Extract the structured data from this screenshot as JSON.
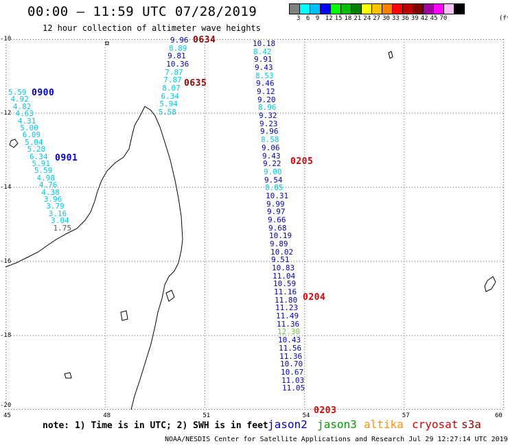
{
  "title": "00:00 – 11:59 UTC 07/28/2019",
  "subtitle": "12 hour collection of altimeter wave heights",
  "colorbar": {
    "colors": [
      "#808080",
      "#00ffff",
      "#00c0ff",
      "#0000ff",
      "#00ff00",
      "#00c000",
      "#008000",
      "#ffff00",
      "#ffc000",
      "#ff8000",
      "#ff0000",
      "#c00000",
      "#800000",
      "#a000a0",
      "#ff00ff",
      "#ffc0ff",
      "#000000"
    ],
    "labels": [
      "3",
      "6",
      "9",
      "12",
      "15",
      "18",
      "21",
      "24",
      "27",
      "30",
      "33",
      "36",
      "39",
      "42",
      "45",
      "70"
    ],
    "unit": "(ft)"
  },
  "map": {
    "lon_range": [
      45,
      60
    ],
    "lat_range": [
      -20,
      -10
    ],
    "grid": true,
    "lon_ticks": [
      "45",
      "48",
      "51",
      "54",
      "57",
      "60"
    ],
    "lat_ticks": [
      "-10",
      "-12",
      "-14",
      "-16",
      "-18",
      "-20"
    ]
  },
  "colors": {
    "jason2": "#0000cc",
    "jason3": "#00a000",
    "altika": "#ff9000",
    "cryosat": "#dd0000",
    "s3a": "#990000",
    "cyan": "#00c8e8",
    "coast": "#000000",
    "grid": "#666666"
  },
  "tracks": [
    {
      "id": "track_a",
      "values": [
        {
          "v": "5.59",
          "c": "cyan"
        },
        {
          "v": "4.92",
          "c": "cyan"
        },
        {
          "v": "4.82",
          "c": "cyan"
        },
        {
          "v": "4.63",
          "c": "cyan"
        },
        {
          "v": "4.31",
          "c": "cyan"
        },
        {
          "v": "5.00",
          "c": "cyan"
        },
        {
          "v": "6.09",
          "c": "cyan"
        },
        {
          "v": "5.04",
          "c": "cyan"
        },
        {
          "v": "5.28",
          "c": "cyan"
        },
        {
          "v": "6.34",
          "c": "cyan"
        },
        {
          "v": "5.91",
          "c": "cyan"
        },
        {
          "v": "5.59",
          "c": "cyan"
        },
        {
          "v": "4.98",
          "c": "cyan"
        },
        {
          "v": "4.76",
          "c": "cyan"
        },
        {
          "v": "4.38",
          "c": "cyan"
        },
        {
          "v": "3.96",
          "c": "cyan"
        },
        {
          "v": "3.79",
          "c": "cyan"
        },
        {
          "v": "3.16",
          "c": "cyan"
        },
        {
          "v": "3.04",
          "c": "cyan"
        },
        {
          "v": "1.75",
          "c": "gray"
        }
      ]
    },
    {
      "id": "track_b",
      "values": [
        {
          "v": "9.96",
          "c": "jason2"
        },
        {
          "v": "8.89",
          "c": "cyan"
        },
        {
          "v": "9.81",
          "c": "jason2"
        },
        {
          "v": "10.36",
          "c": "jason2"
        },
        {
          "v": "7.87",
          "c": "cyan"
        },
        {
          "v": "7.87",
          "c": "cyan"
        },
        {
          "v": "8.07",
          "c": "cyan"
        },
        {
          "v": "6.34",
          "c": "cyan"
        },
        {
          "v": "5.94",
          "c": "cyan"
        },
        {
          "v": "5.58",
          "c": "cyan"
        }
      ]
    },
    {
      "id": "track_c",
      "values": [
        {
          "v": "10.18",
          "c": "jason2"
        },
        {
          "v": "8.42",
          "c": "cyan"
        },
        {
          "v": "9.91",
          "c": "jason2"
        },
        {
          "v": "9.43",
          "c": "jason2"
        },
        {
          "v": "8.53",
          "c": "cyan"
        },
        {
          "v": "9.46",
          "c": "jason2"
        },
        {
          "v": "9.12",
          "c": "jason2"
        },
        {
          "v": "9.20",
          "c": "jason2"
        },
        {
          "v": "8.96",
          "c": "cyan"
        },
        {
          "v": "9.32",
          "c": "jason2"
        },
        {
          "v": "9.23",
          "c": "jason2"
        },
        {
          "v": "9.96",
          "c": "jason2"
        },
        {
          "v": "8.58",
          "c": "cyan"
        },
        {
          "v": "9.06",
          "c": "jason2"
        },
        {
          "v": "9.43",
          "c": "jason2"
        },
        {
          "v": "9.22",
          "c": "jason2"
        },
        {
          "v": "9.00",
          "c": "cyan"
        },
        {
          "v": "9.54",
          "c": "jason2"
        },
        {
          "v": "8.85",
          "c": "cyan"
        },
        {
          "v": "10.31",
          "c": "jason2"
        },
        {
          "v": "9.99",
          "c": "jason2"
        },
        {
          "v": "9.97",
          "c": "jason2"
        },
        {
          "v": "9.66",
          "c": "jason2"
        },
        {
          "v": "9.68",
          "c": "jason2"
        },
        {
          "v": "10.19",
          "c": "jason2"
        },
        {
          "v": "9.89",
          "c": "jason2"
        },
        {
          "v": "10.02",
          "c": "jason2"
        },
        {
          "v": "9.51",
          "c": "jason2"
        },
        {
          "v": "10.83",
          "c": "jason2"
        },
        {
          "v": "11.04",
          "c": "jason2"
        },
        {
          "v": "10.59",
          "c": "jason2"
        },
        {
          "v": "11.16",
          "c": "jason2"
        },
        {
          "v": "11.80",
          "c": "jason2"
        },
        {
          "v": "11.23",
          "c": "jason2"
        },
        {
          "v": "11.49",
          "c": "jason2"
        },
        {
          "v": "11.36",
          "c": "jason2"
        },
        {
          "v": "12.30",
          "c": "green"
        },
        {
          "v": "10.43",
          "c": "jason2"
        },
        {
          "v": "11.56",
          "c": "jason2"
        },
        {
          "v": "11.36",
          "c": "jason2"
        },
        {
          "v": "10.70",
          "c": "jason2"
        },
        {
          "v": "10.67",
          "c": "jason2"
        },
        {
          "v": "11.03",
          "c": "jason2"
        },
        {
          "v": "11.05",
          "c": "jason2"
        }
      ]
    }
  ],
  "timestamps": [
    {
      "t": "0634",
      "c": "s3a"
    },
    {
      "t": "0635",
      "c": "s3a"
    },
    {
      "t": "0900",
      "c": "jason2"
    },
    {
      "t": "0901",
      "c": "jason2"
    },
    {
      "t": "0205",
      "c": "cryosat"
    },
    {
      "t": "0204",
      "c": "cryosat"
    },
    {
      "t": "0203",
      "c": "cryosat"
    }
  ],
  "note": "note: 1) Time is in UTC; 2) SWH is in feet",
  "legend": [
    {
      "name": "jason2",
      "c": "jason2"
    },
    {
      "name": "jason3",
      "c": "jason3"
    },
    {
      "name": "altika",
      "c": "altika"
    },
    {
      "name": "cryosat",
      "c": "cryosat"
    },
    {
      "name": "s3a",
      "c": "s3a"
    }
  ],
  "credit": "NOAA/NESDIS Center for Satellite Applications and Research    Jul 29 12:27:14 UTC 2019"
}
